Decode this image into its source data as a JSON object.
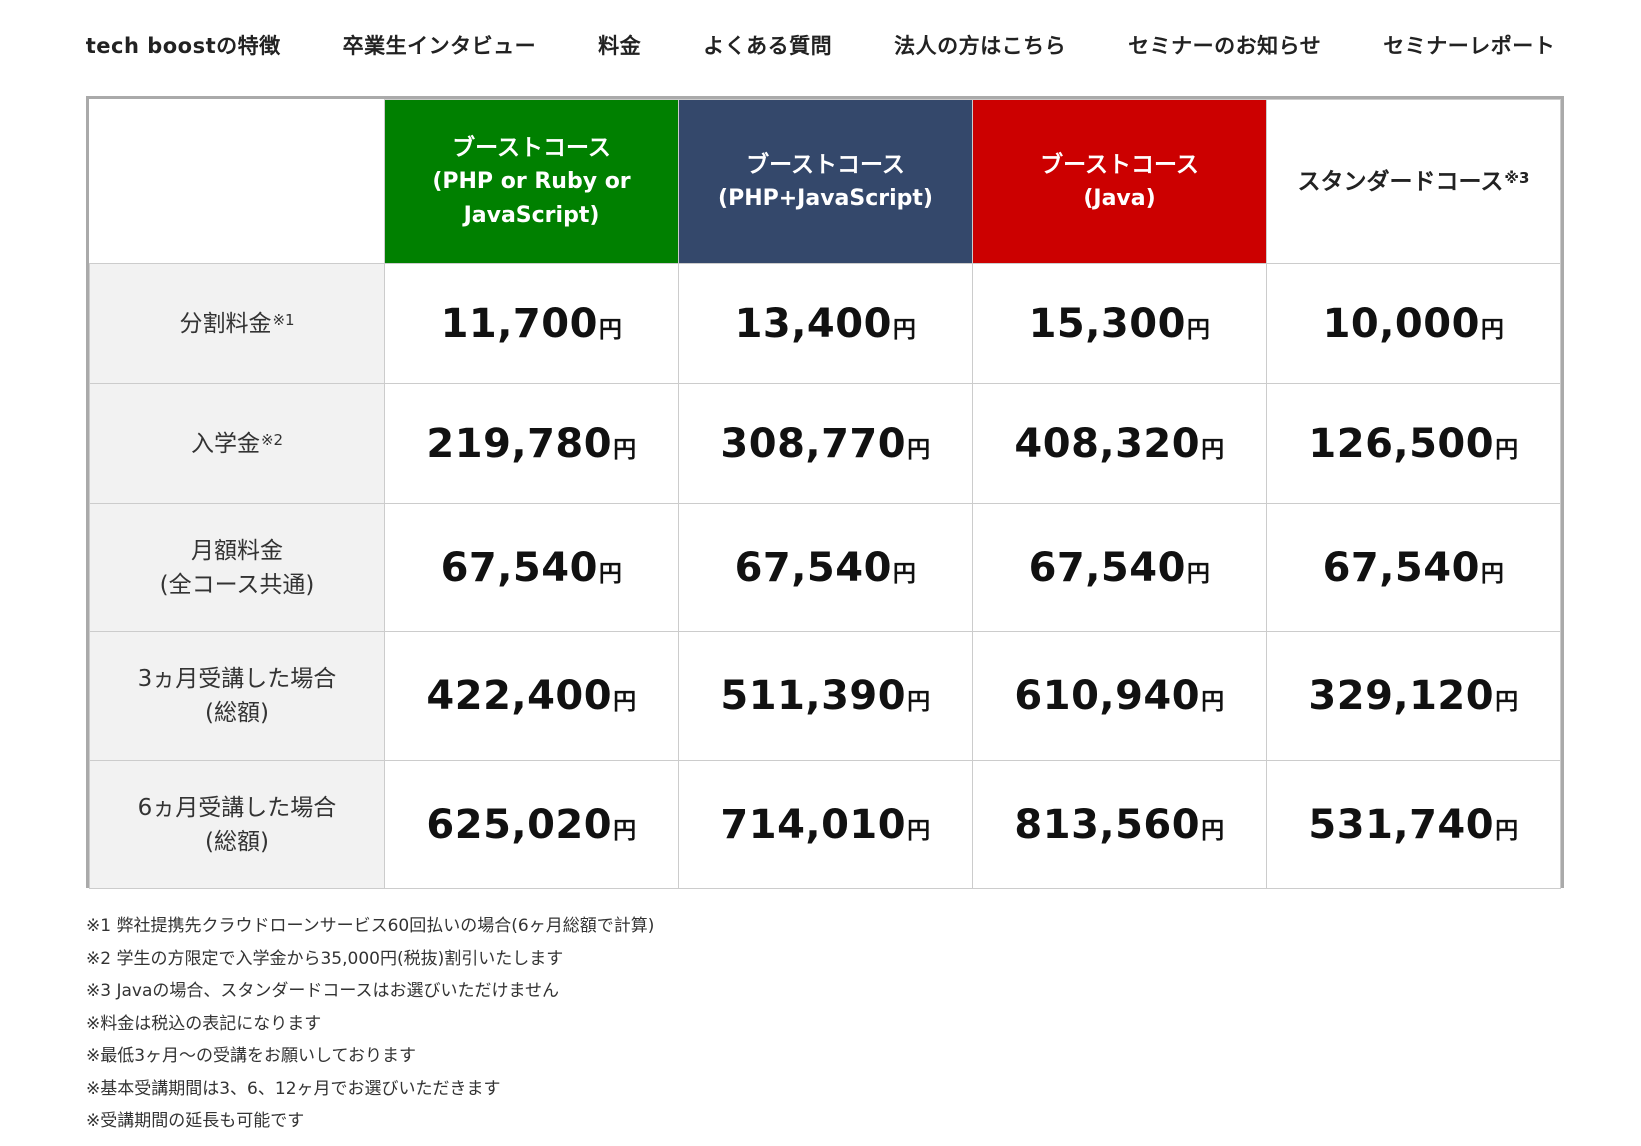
{
  "nav": {
    "items": [
      "tech boostの特徴",
      "卒業生インタビュー",
      "料金",
      "よくある質問",
      "法人の方はこちら",
      "セミナーのお知らせ",
      "セミナーレポート"
    ]
  },
  "colors": {
    "green": "#008000",
    "navy": "#34486b",
    "red": "#cc0000",
    "label_bg": "#f2f2f2"
  },
  "table": {
    "columns": [
      {
        "name": "ブーストコース",
        "sub1": "(PHP or Ruby or",
        "sub2": "JavaScript)"
      },
      {
        "name": "ブーストコース",
        "sub1": "(PHP+JavaScript)"
      },
      {
        "name": "ブーストコース",
        "sub1": "(Java)"
      },
      {
        "name": "スタンダードコース",
        "mark": "※3"
      }
    ],
    "rows": [
      {
        "label": "分割料金",
        "mark": "※1",
        "values": [
          "11,700",
          "13,400",
          "15,300",
          "10,000"
        ]
      },
      {
        "label": "入学金",
        "mark": "※2",
        "values": [
          "219,780",
          "308,770",
          "408,320",
          "126,500"
        ]
      },
      {
        "label": "月額料金",
        "label2": "(全コース共通)",
        "values": [
          "67,540",
          "67,540",
          "67,540",
          "67,540"
        ]
      },
      {
        "label": "3ヵ月受講した場合",
        "label2": "(総額)",
        "values": [
          "422,400",
          "511,390",
          "610,940",
          "329,120"
        ]
      },
      {
        "label": "6ヵ月受講した場合",
        "label2": "(総額)",
        "values": [
          "625,020",
          "714,010",
          "813,560",
          "531,740"
        ]
      }
    ],
    "currency": "円"
  },
  "notes": [
    "※1 弊社提携先クラウドローンサービス60回払いの場合(6ヶ月総額で計算)",
    "※2 学生の方限定で入学金から35,000円(税抜)割引いたします",
    "※3 Javaの場合、スタンダードコースはお選びいただけません",
    "※料金は税込の表記になります",
    "※最低3ヶ月〜の受講をお願いしております",
    "※基本受講期間は3、6、12ヶ月でお選びいただきます",
    "※受講期間の延長も可能です"
  ]
}
